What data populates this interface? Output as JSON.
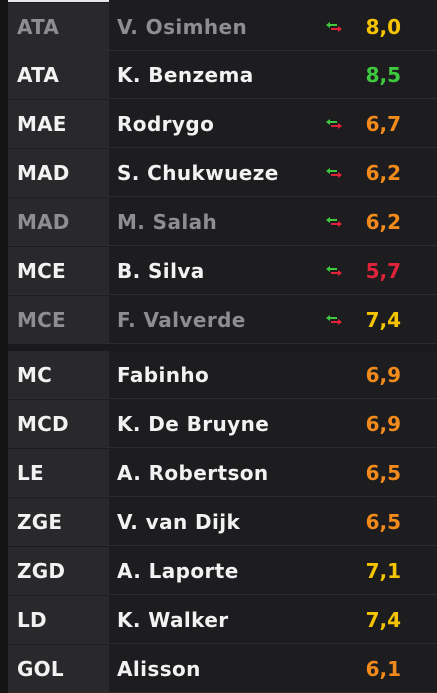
{
  "lineup": {
    "players": [
      {
        "position": "ATA",
        "name": "V. Osimhen",
        "rating": "8,0",
        "rating_color": "#f5c400",
        "subbed": true,
        "dim": true
      },
      {
        "position": "ATA",
        "name": "K. Benzema",
        "rating": "8,5",
        "rating_color": "#3ec93e",
        "subbed": false,
        "dim": false
      },
      {
        "position": "MAE",
        "name": "Rodrygo",
        "rating": "6,7",
        "rating_color": "#f28a1c",
        "subbed": true,
        "dim": false
      },
      {
        "position": "MAD",
        "name": "S. Chukwueze",
        "rating": "6,2",
        "rating_color": "#f28a1c",
        "subbed": true,
        "dim": false
      },
      {
        "position": "MAD",
        "name": "M. Salah",
        "rating": "6,2",
        "rating_color": "#f28a1c",
        "subbed": true,
        "dim": true
      },
      {
        "position": "MCE",
        "name": "B. Silva",
        "rating": "5,7",
        "rating_color": "#e0233a",
        "subbed": true,
        "dim": false
      },
      {
        "position": "MCE",
        "name": "F. Valverde",
        "rating": "7,4",
        "rating_color": "#f5c400",
        "subbed": true,
        "dim": true
      },
      {
        "position": "MC",
        "name": "Fabinho",
        "rating": "6,9",
        "rating_color": "#f28a1c",
        "subbed": false,
        "dim": false
      },
      {
        "position": "MCD",
        "name": "K. De Bruyne",
        "rating": "6,9",
        "rating_color": "#f28a1c",
        "subbed": false,
        "dim": false
      },
      {
        "position": "LE",
        "name": "A. Robertson",
        "rating": "6,5",
        "rating_color": "#f28a1c",
        "subbed": false,
        "dim": false
      },
      {
        "position": "ZGE",
        "name": "V. van Dijk",
        "rating": "6,5",
        "rating_color": "#f28a1c",
        "subbed": false,
        "dim": false
      },
      {
        "position": "ZGD",
        "name": "A. Laporte",
        "rating": "7,1",
        "rating_color": "#f5c400",
        "subbed": false,
        "dim": false
      },
      {
        "position": "LD",
        "name": "K. Walker",
        "rating": "7,4",
        "rating_color": "#f5c400",
        "subbed": false,
        "dim": false
      },
      {
        "position": "GOL",
        "name": "Alisson",
        "rating": "6,1",
        "rating_color": "#f28a1c",
        "subbed": false,
        "dim": false
      }
    ]
  },
  "colors": {
    "sub_in": "#3ec93e",
    "sub_out": "#e0233a"
  }
}
